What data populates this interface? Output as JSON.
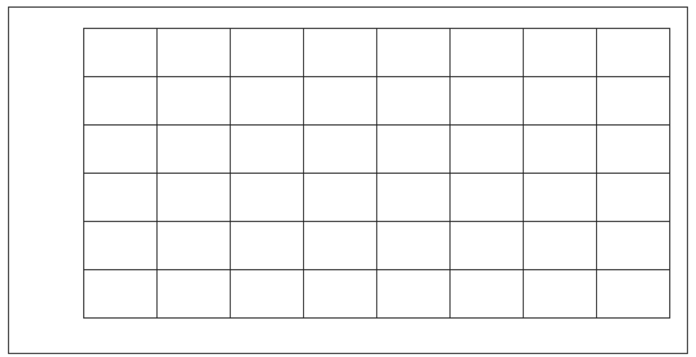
{
  "chart_data": {
    "type": "line",
    "title": "",
    "xlabel": "",
    "ylabel": "",
    "xlim": [],
    "ylim": [],
    "grid": true,
    "series": []
  }
}
